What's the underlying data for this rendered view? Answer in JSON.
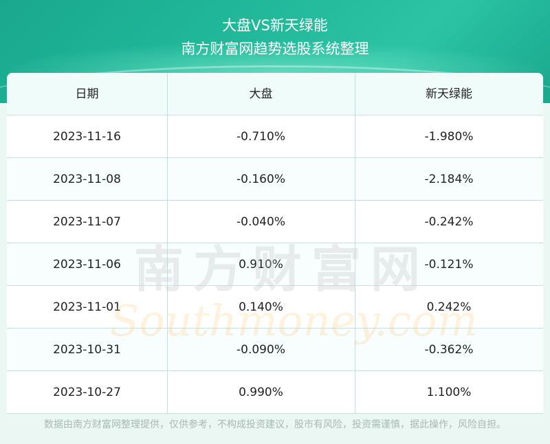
{
  "header": {
    "title": "大盘VS新天绿能",
    "subtitle": "南方财富网趋势选股系统整理"
  },
  "chart_data": {
    "type": "table",
    "columns": [
      "日期",
      "大盘",
      "新天绿能"
    ],
    "rows": [
      [
        "2023-11-16",
        "-0.710%",
        "-1.980%"
      ],
      [
        "2023-11-08",
        "-0.160%",
        "-2.184%"
      ],
      [
        "2023-11-07",
        "-0.040%",
        "-0.242%"
      ],
      [
        "2023-11-06",
        "0.910%",
        "-0.121%"
      ],
      [
        "2023-11-01",
        "0.140%",
        "0.242%"
      ],
      [
        "2023-10-31",
        "-0.090%",
        "-0.362%"
      ],
      [
        "2023-10-27",
        "0.990%",
        "1.100%"
      ]
    ]
  },
  "colors": {
    "header_bg": "#1aa88d",
    "header_row_bg": "#effcfa",
    "alt_row_bg": "#f8fdfd",
    "grid_line": "#bfe3dc"
  },
  "watermark": {
    "cn": "南方财富网",
    "en": "Southmoney.com"
  },
  "footer": {
    "disclaimer": "数据由南方财富网整理提供，仅供参考，不构成投资建议，股市有风险，投资需谨慎，据此操作，风险自担。"
  }
}
